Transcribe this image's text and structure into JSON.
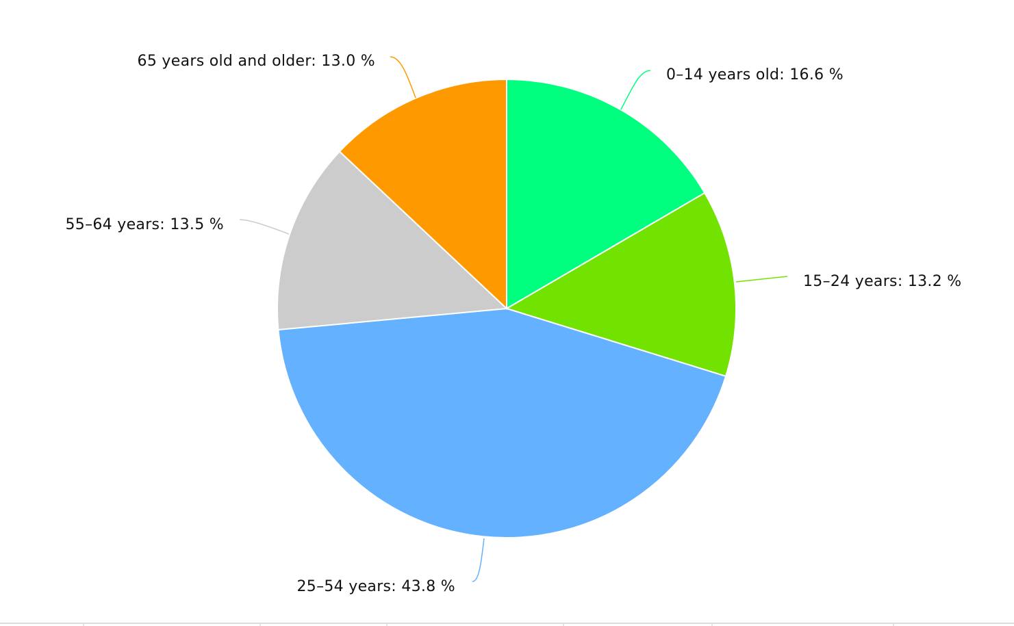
{
  "chart_data": {
    "type": "pie",
    "title": "",
    "start_angle": "top, clockwise",
    "slices": [
      {
        "label": "0-14 years old",
        "value": 16.6,
        "display": "0–14 years old: 16.6 %",
        "color": "#00FF7F"
      },
      {
        "label": "15-24 years",
        "value": 13.2,
        "display": "15–24 years: 13.2 %",
        "color": "#72E300"
      },
      {
        "label": "25-54 years",
        "value": 43.8,
        "display": "25–54 years: 43.8 %",
        "color": "#63B1FF"
      },
      {
        "label": "55-64 years",
        "value": 13.5,
        "display": "55–64 years: 13.5 %",
        "color": "#CCCCCC"
      },
      {
        "label": "65 years old and older",
        "value": 13.0,
        "display": "65 years old and older: 13.0 %",
        "color": "#FF9900"
      }
    ],
    "legend": "none (data labels with connectors)"
  }
}
